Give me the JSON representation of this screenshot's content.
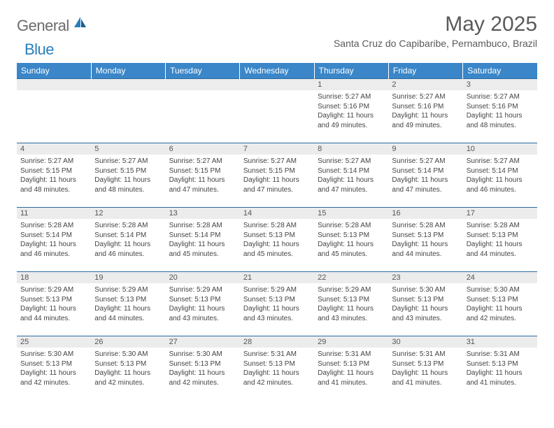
{
  "brand": {
    "text1": "General",
    "text2": "Blue"
  },
  "title": "May 2025",
  "location": "Santa Cruz do Capibaribe, Pernambuco, Brazil",
  "colors": {
    "header_bg": "#3a86c8",
    "header_text": "#ffffff",
    "daynum_bg": "#ececec",
    "border": "#2a6aa0",
    "brand_gray": "#6b6b6b",
    "brand_blue": "#2a7fba"
  },
  "daynames": [
    "Sunday",
    "Monday",
    "Tuesday",
    "Wednesday",
    "Thursday",
    "Friday",
    "Saturday"
  ],
  "weeks": [
    [
      {
        "n": "",
        "sr": "",
        "ss": "",
        "dl": ""
      },
      {
        "n": "",
        "sr": "",
        "ss": "",
        "dl": ""
      },
      {
        "n": "",
        "sr": "",
        "ss": "",
        "dl": ""
      },
      {
        "n": "",
        "sr": "",
        "ss": "",
        "dl": ""
      },
      {
        "n": "1",
        "sr": "Sunrise: 5:27 AM",
        "ss": "Sunset: 5:16 PM",
        "dl": "Daylight: 11 hours and 49 minutes."
      },
      {
        "n": "2",
        "sr": "Sunrise: 5:27 AM",
        "ss": "Sunset: 5:16 PM",
        "dl": "Daylight: 11 hours and 49 minutes."
      },
      {
        "n": "3",
        "sr": "Sunrise: 5:27 AM",
        "ss": "Sunset: 5:16 PM",
        "dl": "Daylight: 11 hours and 48 minutes."
      }
    ],
    [
      {
        "n": "4",
        "sr": "Sunrise: 5:27 AM",
        "ss": "Sunset: 5:15 PM",
        "dl": "Daylight: 11 hours and 48 minutes."
      },
      {
        "n": "5",
        "sr": "Sunrise: 5:27 AM",
        "ss": "Sunset: 5:15 PM",
        "dl": "Daylight: 11 hours and 48 minutes."
      },
      {
        "n": "6",
        "sr": "Sunrise: 5:27 AM",
        "ss": "Sunset: 5:15 PM",
        "dl": "Daylight: 11 hours and 47 minutes."
      },
      {
        "n": "7",
        "sr": "Sunrise: 5:27 AM",
        "ss": "Sunset: 5:15 PM",
        "dl": "Daylight: 11 hours and 47 minutes."
      },
      {
        "n": "8",
        "sr": "Sunrise: 5:27 AM",
        "ss": "Sunset: 5:14 PM",
        "dl": "Daylight: 11 hours and 47 minutes."
      },
      {
        "n": "9",
        "sr": "Sunrise: 5:27 AM",
        "ss": "Sunset: 5:14 PM",
        "dl": "Daylight: 11 hours and 47 minutes."
      },
      {
        "n": "10",
        "sr": "Sunrise: 5:27 AM",
        "ss": "Sunset: 5:14 PM",
        "dl": "Daylight: 11 hours and 46 minutes."
      }
    ],
    [
      {
        "n": "11",
        "sr": "Sunrise: 5:28 AM",
        "ss": "Sunset: 5:14 PM",
        "dl": "Daylight: 11 hours and 46 minutes."
      },
      {
        "n": "12",
        "sr": "Sunrise: 5:28 AM",
        "ss": "Sunset: 5:14 PM",
        "dl": "Daylight: 11 hours and 46 minutes."
      },
      {
        "n": "13",
        "sr": "Sunrise: 5:28 AM",
        "ss": "Sunset: 5:14 PM",
        "dl": "Daylight: 11 hours and 45 minutes."
      },
      {
        "n": "14",
        "sr": "Sunrise: 5:28 AM",
        "ss": "Sunset: 5:13 PM",
        "dl": "Daylight: 11 hours and 45 minutes."
      },
      {
        "n": "15",
        "sr": "Sunrise: 5:28 AM",
        "ss": "Sunset: 5:13 PM",
        "dl": "Daylight: 11 hours and 45 minutes."
      },
      {
        "n": "16",
        "sr": "Sunrise: 5:28 AM",
        "ss": "Sunset: 5:13 PM",
        "dl": "Daylight: 11 hours and 44 minutes."
      },
      {
        "n": "17",
        "sr": "Sunrise: 5:28 AM",
        "ss": "Sunset: 5:13 PM",
        "dl": "Daylight: 11 hours and 44 minutes."
      }
    ],
    [
      {
        "n": "18",
        "sr": "Sunrise: 5:29 AM",
        "ss": "Sunset: 5:13 PM",
        "dl": "Daylight: 11 hours and 44 minutes."
      },
      {
        "n": "19",
        "sr": "Sunrise: 5:29 AM",
        "ss": "Sunset: 5:13 PM",
        "dl": "Daylight: 11 hours and 44 minutes."
      },
      {
        "n": "20",
        "sr": "Sunrise: 5:29 AM",
        "ss": "Sunset: 5:13 PM",
        "dl": "Daylight: 11 hours and 43 minutes."
      },
      {
        "n": "21",
        "sr": "Sunrise: 5:29 AM",
        "ss": "Sunset: 5:13 PM",
        "dl": "Daylight: 11 hours and 43 minutes."
      },
      {
        "n": "22",
        "sr": "Sunrise: 5:29 AM",
        "ss": "Sunset: 5:13 PM",
        "dl": "Daylight: 11 hours and 43 minutes."
      },
      {
        "n": "23",
        "sr": "Sunrise: 5:30 AM",
        "ss": "Sunset: 5:13 PM",
        "dl": "Daylight: 11 hours and 43 minutes."
      },
      {
        "n": "24",
        "sr": "Sunrise: 5:30 AM",
        "ss": "Sunset: 5:13 PM",
        "dl": "Daylight: 11 hours and 42 minutes."
      }
    ],
    [
      {
        "n": "25",
        "sr": "Sunrise: 5:30 AM",
        "ss": "Sunset: 5:13 PM",
        "dl": "Daylight: 11 hours and 42 minutes."
      },
      {
        "n": "26",
        "sr": "Sunrise: 5:30 AM",
        "ss": "Sunset: 5:13 PM",
        "dl": "Daylight: 11 hours and 42 minutes."
      },
      {
        "n": "27",
        "sr": "Sunrise: 5:30 AM",
        "ss": "Sunset: 5:13 PM",
        "dl": "Daylight: 11 hours and 42 minutes."
      },
      {
        "n": "28",
        "sr": "Sunrise: 5:31 AM",
        "ss": "Sunset: 5:13 PM",
        "dl": "Daylight: 11 hours and 42 minutes."
      },
      {
        "n": "29",
        "sr": "Sunrise: 5:31 AM",
        "ss": "Sunset: 5:13 PM",
        "dl": "Daylight: 11 hours and 41 minutes."
      },
      {
        "n": "30",
        "sr": "Sunrise: 5:31 AM",
        "ss": "Sunset: 5:13 PM",
        "dl": "Daylight: 11 hours and 41 minutes."
      },
      {
        "n": "31",
        "sr": "Sunrise: 5:31 AM",
        "ss": "Sunset: 5:13 PM",
        "dl": "Daylight: 11 hours and 41 minutes."
      }
    ]
  ]
}
